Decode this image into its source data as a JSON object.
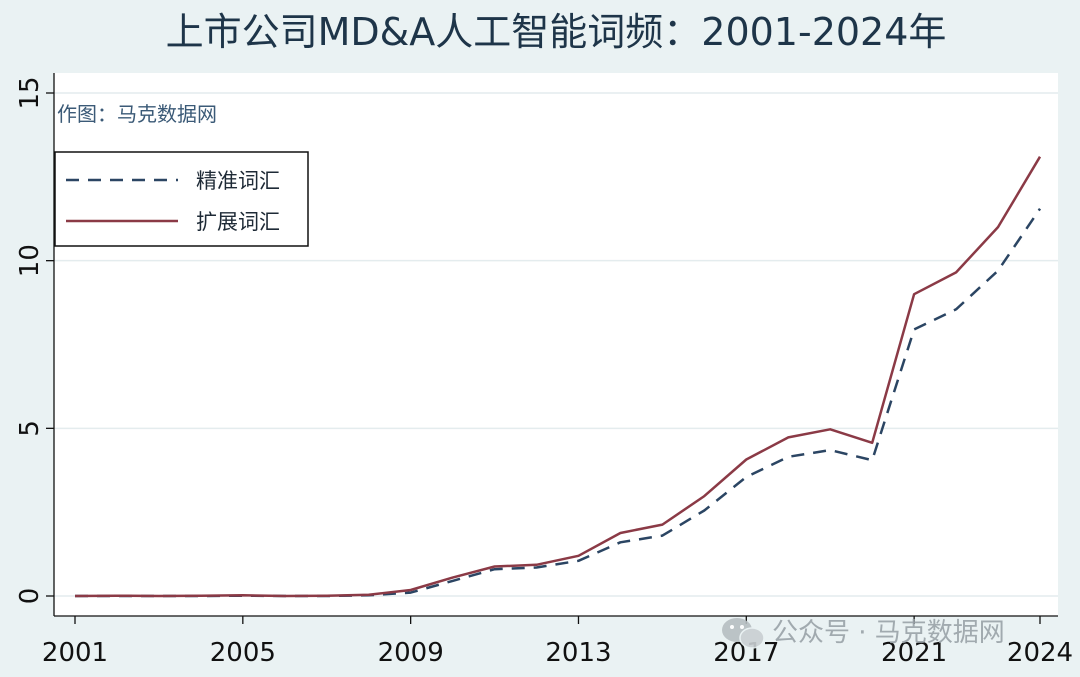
{
  "chart_data": {
    "type": "line",
    "title": "上市公司MD&A人工智能词频：2001-2024年",
    "note": "作图：马克数据网",
    "xlabel": "",
    "ylabel": "",
    "x": [
      2001,
      2002,
      2003,
      2004,
      2005,
      2006,
      2007,
      2008,
      2009,
      2010,
      2011,
      2012,
      2013,
      2014,
      2015,
      2016,
      2017,
      2018,
      2019,
      2020,
      2021,
      2022,
      2023,
      2024
    ],
    "xticks": [
      "2001",
      "2005",
      "2009",
      "2013",
      "2017",
      "2021",
      "2024"
    ],
    "xlim": [
      2001,
      2024
    ],
    "yticks": [
      "0",
      "5",
      "10",
      "15"
    ],
    "ylim": [
      0,
      15
    ],
    "grid": true,
    "legend_position": "top-left",
    "series": [
      {
        "name": "精准词汇",
        "style": "dashed",
        "color": "#2b4563",
        "values": [
          0.0,
          0.0,
          0.0,
          0.0,
          0.01,
          0.0,
          0.0,
          0.02,
          0.1,
          0.45,
          0.8,
          0.85,
          1.05,
          1.6,
          1.8,
          2.55,
          3.55,
          4.15,
          4.35,
          4.05,
          7.95,
          8.55,
          9.7,
          11.55
        ]
      },
      {
        "name": "扩展词汇",
        "style": "solid",
        "color": "#8b3a46",
        "values": [
          0.0,
          0.01,
          0.0,
          0.01,
          0.02,
          0.0,
          0.01,
          0.04,
          0.18,
          0.55,
          0.88,
          0.93,
          1.2,
          1.88,
          2.13,
          2.98,
          4.07,
          4.73,
          4.97,
          4.57,
          9.0,
          9.65,
          11.0,
          13.1
        ]
      }
    ]
  },
  "watermark": "公众号 · 马克数据网",
  "watermark_icon": "wechat-icon"
}
